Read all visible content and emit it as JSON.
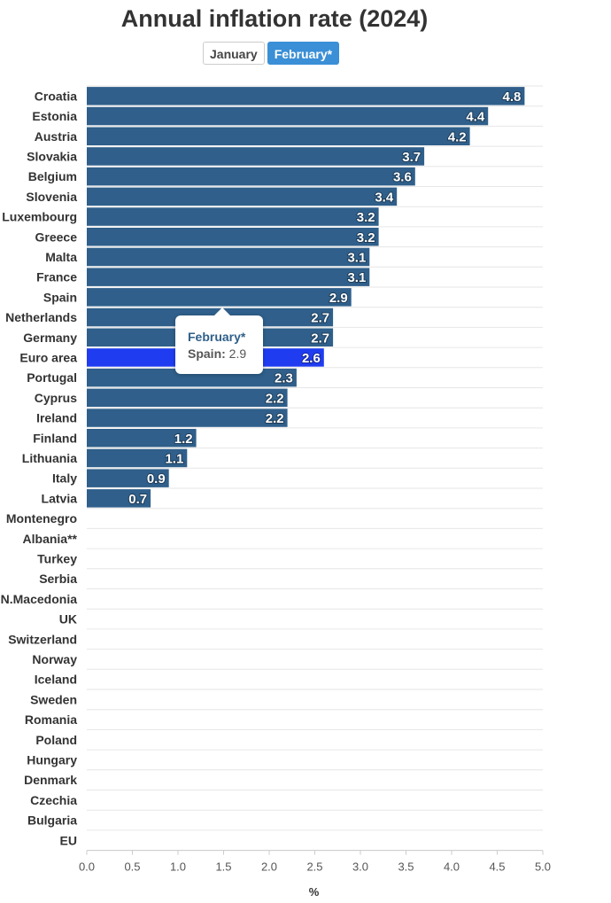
{
  "header": {
    "title": "Annual inflation rate (2024)"
  },
  "tabs": [
    {
      "label": "January",
      "active": false
    },
    {
      "label": "February*",
      "active": true
    }
  ],
  "tooltip": {
    "title": "February*",
    "label": "Spain:",
    "value": "2.9"
  },
  "colors": {
    "bar": "#2f5f8a",
    "highlight": "#1f3cf0",
    "tab_active": "#3a8fd6",
    "grid": "#e6e6e6"
  },
  "chart_data": {
    "type": "bar",
    "orientation": "horizontal",
    "title": "Annual inflation rate (2024)",
    "series_name": "February*",
    "xlabel": "%",
    "xlim": [
      0,
      5
    ],
    "xticks": [
      "0.0",
      "0.5",
      "1.0",
      "1.5",
      "2.0",
      "2.5",
      "3.0",
      "3.5",
      "4.0",
      "4.5",
      "5.0"
    ],
    "highlighted_category": "Euro area",
    "categories": [
      "Croatia",
      "Estonia",
      "Austria",
      "Slovakia",
      "Belgium",
      "Slovenia",
      "Luxembourg",
      "Greece",
      "Malta",
      "France",
      "Spain",
      "Netherlands",
      "Germany",
      "Euro area",
      "Portugal",
      "Cyprus",
      "Ireland",
      "Finland",
      "Lithuania",
      "Italy",
      "Latvia",
      "Montenegro",
      "Albania**",
      "Turkey",
      "Serbia",
      "N.Macedonia",
      "UK",
      "Switzerland",
      "Norway",
      "Iceland",
      "Sweden",
      "Romania",
      "Poland",
      "Hungary",
      "Denmark",
      "Czechia",
      "Bulgaria",
      "EU"
    ],
    "values": [
      4.8,
      4.4,
      4.2,
      3.7,
      3.6,
      3.4,
      3.2,
      3.2,
      3.1,
      3.1,
      2.9,
      2.7,
      2.7,
      2.6,
      2.3,
      2.2,
      2.2,
      1.2,
      1.1,
      0.9,
      0.7,
      null,
      null,
      null,
      null,
      null,
      null,
      null,
      null,
      null,
      null,
      null,
      null,
      null,
      null,
      null,
      null,
      null
    ],
    "labels": [
      "4.8",
      "4.4",
      "4.2",
      "3.7",
      "3.6",
      "3.4",
      "3.2",
      "3.2",
      "3.1",
      "3.1",
      "2.9",
      "2.7",
      "2.7",
      "2.6",
      "2.3",
      "2.2",
      "2.2",
      "1.2",
      "1.1",
      "0.9",
      "0.7",
      "",
      "",
      "",
      "",
      "",
      "",
      "",
      "",
      "",
      "",
      "",
      "",
      "",
      "",
      "",
      "",
      ""
    ]
  }
}
